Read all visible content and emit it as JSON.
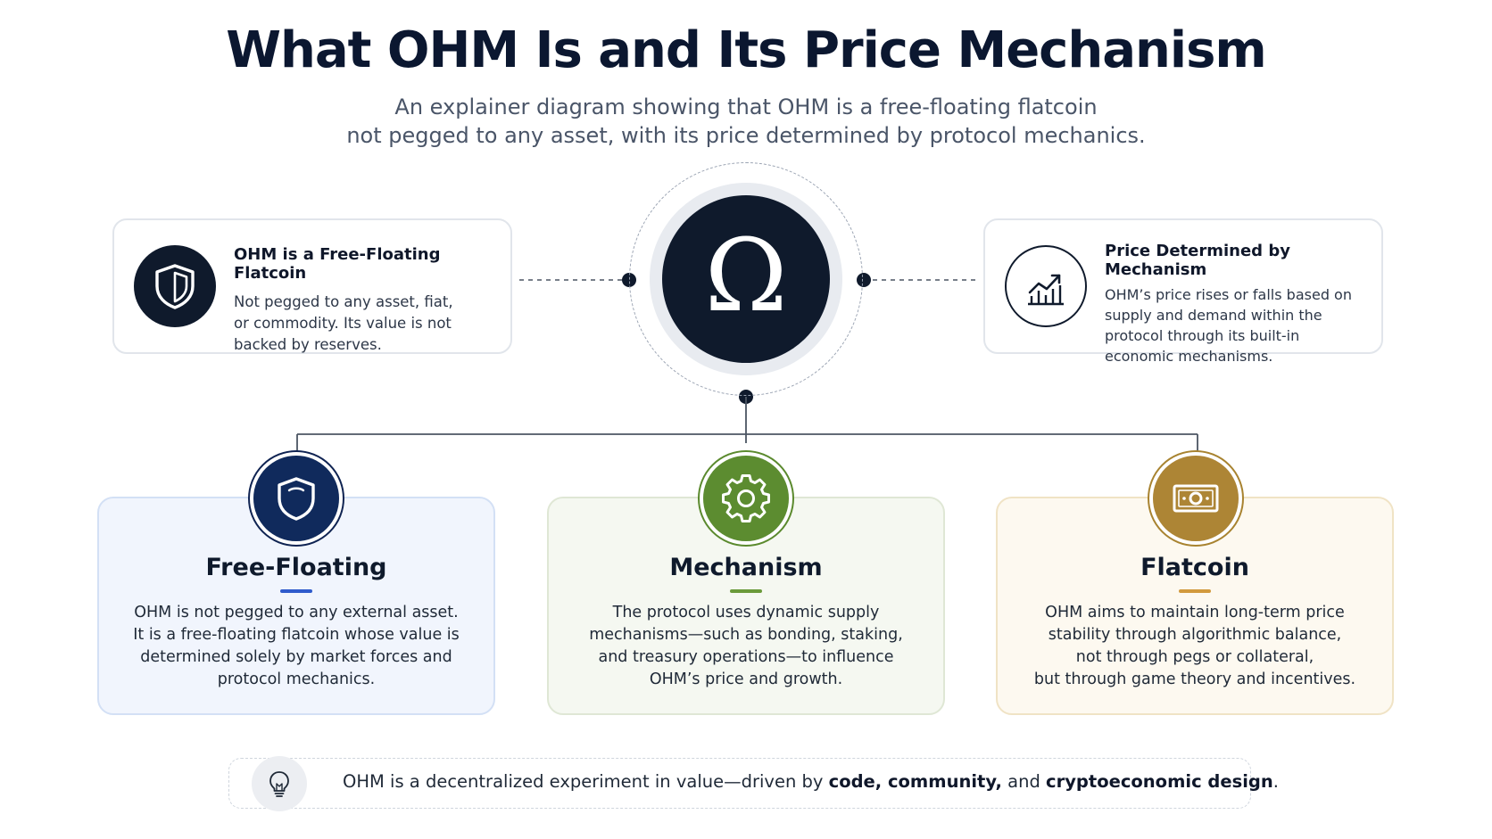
{
  "header": {
    "title": "What OHM Is and Its Price Mechanism",
    "subtitle_line1": "An explainer diagram showing that OHM is a free-floating flatcoin",
    "subtitle_line2": "not pegged to any asset, with its price determined by protocol mechanics."
  },
  "center": {
    "symbol": "Ω",
    "icon": "omega-icon"
  },
  "top_left_card": {
    "icon": "shield-icon",
    "title": "OHM is a Free-Floating Flatcoin",
    "body_line1": "Not pegged to any asset, fiat,",
    "body_line2": "or commodity. Its value is not",
    "body_line3": "backed by reserves."
  },
  "top_right_card": {
    "icon": "chart-up-icon",
    "title": "Price Determined by Mechanism",
    "body_line1": "OHM’s price rises or falls based on",
    "body_line2": "supply and demand within the",
    "body_line3": "protocol through its built-in",
    "body_line4": "economic mechanisms."
  },
  "cards": [
    {
      "icon": "shield-icon",
      "title": "Free-Floating",
      "lines": [
        "OHM is not pegged to any external asset.",
        "It is a free-floating flatcoin whose value is",
        "determined solely by market forces and",
        "protocol mechanics."
      ]
    },
    {
      "icon": "gear-icon",
      "title": "Mechanism",
      "lines": [
        "The protocol uses dynamic supply",
        "mechanisms—such as bonding, staking,",
        "and treasury operations—to influence",
        "OHM’s price and growth."
      ]
    },
    {
      "icon": "banknote-icon",
      "title": "Flatcoin",
      "lines": [
        "OHM aims to maintain long-term price",
        "stability through algorithmic balance,",
        "not through pegs or collateral,",
        "but through game theory and incentives."
      ]
    }
  ],
  "footer": {
    "icon": "lightbulb-icon",
    "text_prefix": "OHM is a decentralized experiment in value—driven by ",
    "bold_1": "code, community,",
    "text_mid": " and ",
    "bold_2": "cryptoeconomic design",
    "text_suffix": "."
  },
  "colors": {
    "navy": "#0f1a2c",
    "blue_accent": "#2f5bcc",
    "green_accent": "#5c8c30",
    "gold_accent": "#ad8535"
  }
}
